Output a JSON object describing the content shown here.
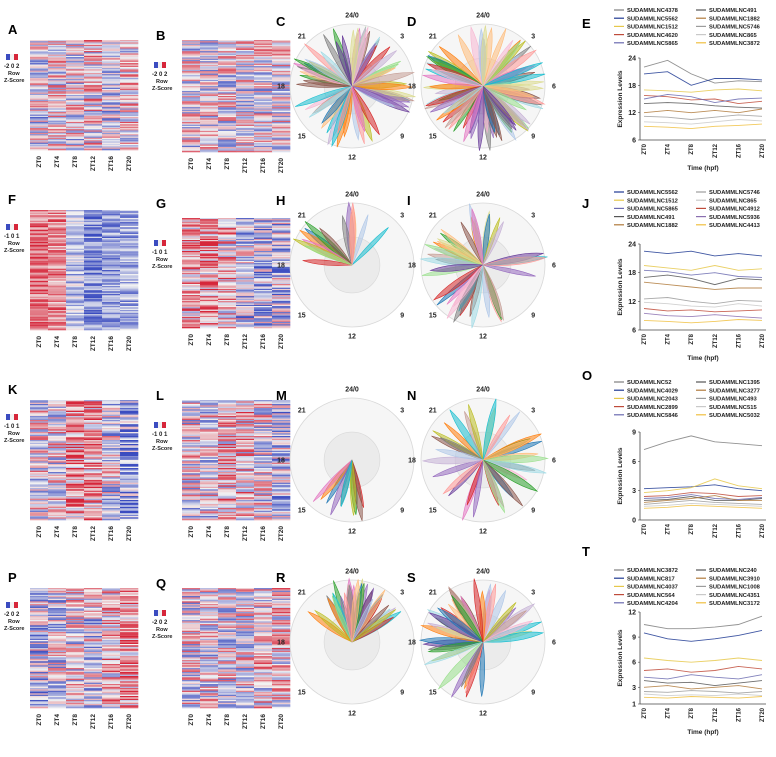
{
  "figure": {
    "zscore_label_1": "Row",
    "zscore_label_2": "Z-Score",
    "heatmap_low_color": "#3b4cc0",
    "heatmap_mid_color": "#f2f2f2",
    "heatmap_high_color": "#d6263a",
    "radial_ticks": [
      "24/0",
      "3",
      "6",
      "9",
      "12",
      "15",
      "18",
      "21"
    ],
    "petal_palette": [
      "#1f77b4",
      "#ff7f0e",
      "#2ca02c",
      "#d62728",
      "#9467bd",
      "#8c564b",
      "#e377c2",
      "#7f7f7f",
      "#bcbd22",
      "#17becf",
      "#aec7e8",
      "#ffbb78",
      "#98df8a",
      "#ff9896",
      "#c5b0d5",
      "#c49c94",
      "#f7b6d2",
      "#dbdb8d",
      "#9edae5",
      "#6a3d9a"
    ]
  },
  "rows": [
    {
      "heatmaps": [
        {
          "letter": "A",
          "scale": "-2 0 2",
          "xticks": [
            "ZT0",
            "ZT4",
            "ZT8",
            "ZT12",
            "ZT16",
            "ZT20"
          ]
        },
        {
          "letter": "B",
          "scale": "-2 0 2",
          "xticks": [
            "ZT0",
            "ZT4",
            "ZT8",
            "ZT12",
            "ZT16",
            "ZT20"
          ]
        }
      ],
      "radials": [
        {
          "letter": "C"
        },
        {
          "letter": "D"
        }
      ],
      "line_letter": "E"
    },
    {
      "heatmaps": [
        {
          "letter": "F",
          "scale": "-1 0 1",
          "xticks": [
            "ZT0",
            "ZT4",
            "ZT8",
            "ZT12",
            "ZT16",
            "ZT20"
          ]
        },
        {
          "letter": "G",
          "scale": "-1 0 1",
          "xticks": [
            "ZT0",
            "ZT4",
            "ZT8",
            "ZT12",
            "ZT16",
            "ZT20"
          ]
        }
      ],
      "radials": [
        {
          "letter": "H"
        },
        {
          "letter": "I"
        }
      ],
      "line_letter": "J"
    },
    {
      "heatmaps": [
        {
          "letter": "K",
          "scale": "-1 0 1",
          "xticks": [
            "ZT0",
            "ZT4",
            "ZT8",
            "ZT12",
            "ZT16",
            "ZT20"
          ]
        },
        {
          "letter": "L",
          "scale": "-1 0 1",
          "xticks": [
            "ZT0",
            "ZT4",
            "ZT8",
            "ZT12",
            "ZT16",
            "ZT20"
          ]
        }
      ],
      "radials": [
        {
          "letter": "M"
        },
        {
          "letter": "N"
        }
      ],
      "line_letter": "O"
    },
    {
      "heatmaps": [
        {
          "letter": "P",
          "scale": "-2 0 2",
          "xticks": [
            "ZT0",
            "ZT4",
            "ZT8",
            "ZT12",
            "ZT16",
            "ZT20"
          ]
        },
        {
          "letter": "Q",
          "scale": "-2 0 2",
          "xticks": [
            "ZT0",
            "ZT4",
            "ZT8",
            "ZT12",
            "ZT16",
            "ZT20"
          ]
        }
      ],
      "radials": [
        {
          "letter": "R"
        },
        {
          "letter": "S"
        }
      ],
      "line_letter": "T"
    }
  ],
  "chart_data": [
    {
      "panel": "E",
      "type": "line",
      "x": [
        "ZT0",
        "ZT4",
        "ZT8",
        "ZT12",
        "ZT16",
        "ZT20"
      ],
      "xlabel": "Time (hpf)",
      "ylabel": "Expression Levels",
      "ylim": [
        6,
        24
      ],
      "yticks": [
        6,
        12,
        18,
        24
      ],
      "grid": false,
      "legend_position": "top",
      "series": [
        {
          "name": "SUDAMMLNC4378",
          "color": "#7f7f7f",
          "values": [
            22.0,
            23.5,
            20.5,
            18.5,
            19.0,
            18.8
          ]
        },
        {
          "name": "SUDAMMLNC5562",
          "color": "#1f3a93",
          "values": [
            20.5,
            21.0,
            18.0,
            19.5,
            19.5,
            19.2
          ]
        },
        {
          "name": "SUDAMMLNC1512",
          "color": "#e6c84b",
          "values": [
            17.0,
            16.8,
            16.5,
            17.0,
            17.2,
            16.8
          ]
        },
        {
          "name": "SUDAMMLNC4620",
          "color": "#bf4b3a",
          "values": [
            15.8,
            15.5,
            14.8,
            15.0,
            14.0,
            14.5
          ]
        },
        {
          "name": "SUDAMMLNC5865",
          "color": "#6b6bb0",
          "values": [
            15.0,
            16.0,
            15.5,
            14.2,
            15.0,
            15.2
          ]
        },
        {
          "name": "SUDAMMLNC491",
          "color": "#555555",
          "values": [
            14.0,
            14.2,
            14.0,
            13.5,
            13.2,
            13.0
          ]
        },
        {
          "name": "SUDAMMLNC1882",
          "color": "#b07a3b",
          "values": [
            12.0,
            12.5,
            12.0,
            12.5,
            12.0,
            12.8
          ]
        },
        {
          "name": "SUDAMMLNC5746",
          "color": "#9c9c9c",
          "values": [
            11.2,
            11.0,
            10.5,
            11.0,
            11.5,
            11.2
          ]
        },
        {
          "name": "SUDAMMLNC865",
          "color": "#c9c9c9",
          "values": [
            10.0,
            9.8,
            9.5,
            10.0,
            10.5,
            10.2
          ]
        },
        {
          "name": "SUDAMMLNC3872",
          "color": "#f0c040",
          "values": [
            9.0,
            8.8,
            8.5,
            9.0,
            9.2,
            9.5
          ]
        }
      ]
    },
    {
      "panel": "J",
      "type": "line",
      "x": [
        "ZT0",
        "ZT4",
        "ZT8",
        "ZT12",
        "ZT16",
        "ZT20"
      ],
      "xlabel": "Time (hpf)",
      "ylabel": "Expression Levels",
      "ylim": [
        6,
        24
      ],
      "yticks": [
        6,
        12,
        18,
        24
      ],
      "grid": false,
      "legend_position": "top",
      "series": [
        {
          "name": "SUDAMMLNC5562",
          "color": "#1f3a93",
          "values": [
            22.5,
            22.0,
            22.5,
            21.5,
            22.0,
            21.5
          ]
        },
        {
          "name": "SUDAMMLNC1512",
          "color": "#e6c84b",
          "values": [
            19.5,
            19.0,
            18.5,
            19.5,
            18.5,
            18.8
          ]
        },
        {
          "name": "SUDAMMLNC5865",
          "color": "#6b6bb0",
          "values": [
            18.5,
            18.2,
            17.5,
            18.0,
            17.2,
            17.0
          ]
        },
        {
          "name": "SUDAMMLNC491",
          "color": "#555555",
          "values": [
            17.0,
            17.5,
            16.8,
            15.5,
            16.8,
            16.5
          ]
        },
        {
          "name": "SUDAMMLNC1882",
          "color": "#b07a3b",
          "values": [
            16.0,
            15.5,
            15.0,
            14.5,
            14.8,
            14.8
          ]
        },
        {
          "name": "SUDAMMLNC5746",
          "color": "#9c9c9c",
          "values": [
            12.5,
            12.8,
            12.0,
            11.5,
            12.2,
            12.0
          ]
        },
        {
          "name": "SUDAMMLNC865",
          "color": "#c9c9c9",
          "values": [
            11.8,
            11.5,
            11.0,
            10.8,
            11.5,
            11.0
          ]
        },
        {
          "name": "SUDAMMLNC4912",
          "color": "#bf4b3a",
          "values": [
            10.5,
            10.0,
            10.2,
            9.8,
            10.0,
            10.2
          ]
        },
        {
          "name": "SUDAMMLNC5936",
          "color": "#8a6fb0",
          "values": [
            9.5,
            9.0,
            8.8,
            9.2,
            8.8,
            8.5
          ]
        },
        {
          "name": "SUDAMMLNC4413",
          "color": "#f0c040",
          "values": [
            8.0,
            7.8,
            7.5,
            7.8,
            8.2,
            8.0
          ]
        }
      ]
    },
    {
      "panel": "O",
      "type": "line",
      "x": [
        "ZT0",
        "ZT4",
        "ZT8",
        "ZT12",
        "ZT16",
        "ZT20"
      ],
      "xlabel": "",
      "ylabel": "Expression Levels",
      "ylim": [
        0,
        9
      ],
      "yticks": [
        0,
        3,
        6,
        9
      ],
      "grid": false,
      "legend_position": "top",
      "series": [
        {
          "name": "SUDAMMLNC52",
          "color": "#7f7f7f",
          "values": [
            7.2,
            8.0,
            8.6,
            8.0,
            7.8,
            7.6
          ]
        },
        {
          "name": "SUDAMMLNC4029",
          "color": "#1f3a93",
          "values": [
            3.2,
            3.3,
            3.4,
            3.6,
            3.2,
            3.0
          ]
        },
        {
          "name": "SUDAMMLNC2043",
          "color": "#e6c84b",
          "values": [
            2.8,
            3.0,
            3.3,
            4.2,
            3.5,
            3.2
          ]
        },
        {
          "name": "SUDAMMLNC2899",
          "color": "#bf4b3a",
          "values": [
            2.4,
            2.5,
            2.8,
            2.7,
            2.4,
            2.5
          ]
        },
        {
          "name": "SUDAMMLNC5846",
          "color": "#6b6bb0",
          "values": [
            2.2,
            2.3,
            2.6,
            2.2,
            2.1,
            2.3
          ]
        },
        {
          "name": "SUDAMMLNC1395",
          "color": "#555555",
          "values": [
            2.0,
            2.1,
            2.4,
            2.0,
            2.0,
            2.2
          ]
        },
        {
          "name": "SUDAMMLNC3277",
          "color": "#b07a3b",
          "values": [
            1.8,
            2.0,
            2.2,
            2.5,
            2.0,
            2.0
          ]
        },
        {
          "name": "SUDAMMLNC493",
          "color": "#9c9c9c",
          "values": [
            1.6,
            1.8,
            2.0,
            1.8,
            1.7,
            1.6
          ]
        },
        {
          "name": "SUDAMMLNC515",
          "color": "#c9c9c9",
          "values": [
            1.4,
            1.5,
            1.7,
            1.6,
            1.5,
            1.4
          ]
        },
        {
          "name": "SUDAMMLNC5032",
          "color": "#f0c040",
          "values": [
            1.2,
            1.3,
            1.5,
            1.4,
            1.3,
            1.2
          ]
        }
      ]
    },
    {
      "panel": "T",
      "type": "line",
      "x": [
        "ZT0",
        "ZT4",
        "ZT8",
        "ZT12",
        "ZT16",
        "ZT20"
      ],
      "xlabel": "Time (hpf)",
      "ylabel": "Expression Levels",
      "ylim": [
        1,
        12
      ],
      "yticks": [
        1,
        3,
        6,
        9,
        12
      ],
      "grid": false,
      "legend_position": "top",
      "series": [
        {
          "name": "SUDAMMLNC3872",
          "color": "#7f7f7f",
          "values": [
            10.5,
            10.0,
            10.0,
            10.2,
            10.5,
            11.5
          ]
        },
        {
          "name": "SUDAMMLNC817",
          "color": "#1f3a93",
          "values": [
            9.5,
            8.8,
            8.5,
            8.8,
            9.2,
            9.8
          ]
        },
        {
          "name": "SUDAMMLNC4037",
          "color": "#e6c84b",
          "values": [
            6.5,
            6.2,
            6.0,
            6.2,
            6.5,
            6.2
          ]
        },
        {
          "name": "SUDAMMLNC564",
          "color": "#bf4b3a",
          "values": [
            5.0,
            5.2,
            4.8,
            5.0,
            5.5,
            5.2
          ]
        },
        {
          "name": "SUDAMMLNC4204",
          "color": "#6b6bb0",
          "values": [
            4.2,
            4.0,
            4.5,
            4.2,
            4.0,
            4.5
          ]
        },
        {
          "name": "SUDAMMLNC240",
          "color": "#555555",
          "values": [
            3.8,
            3.5,
            3.6,
            3.2,
            3.5,
            3.8
          ]
        },
        {
          "name": "SUDAMMLNC3910",
          "color": "#b07a3b",
          "values": [
            3.0,
            3.2,
            2.8,
            3.0,
            3.2,
            2.8
          ]
        },
        {
          "name": "SUDAMMLNC1008",
          "color": "#9c9c9c",
          "values": [
            2.5,
            2.4,
            2.6,
            2.5,
            2.3,
            2.5
          ]
        },
        {
          "name": "SUDAMMLNC4351",
          "color": "#c9c9c9",
          "values": [
            2.2,
            2.0,
            2.1,
            2.0,
            2.2,
            2.0
          ]
        },
        {
          "name": "SUDAMMLNC3172",
          "color": "#f0c040",
          "values": [
            1.8,
            1.7,
            1.9,
            1.8,
            1.7,
            1.9
          ]
        }
      ]
    }
  ]
}
